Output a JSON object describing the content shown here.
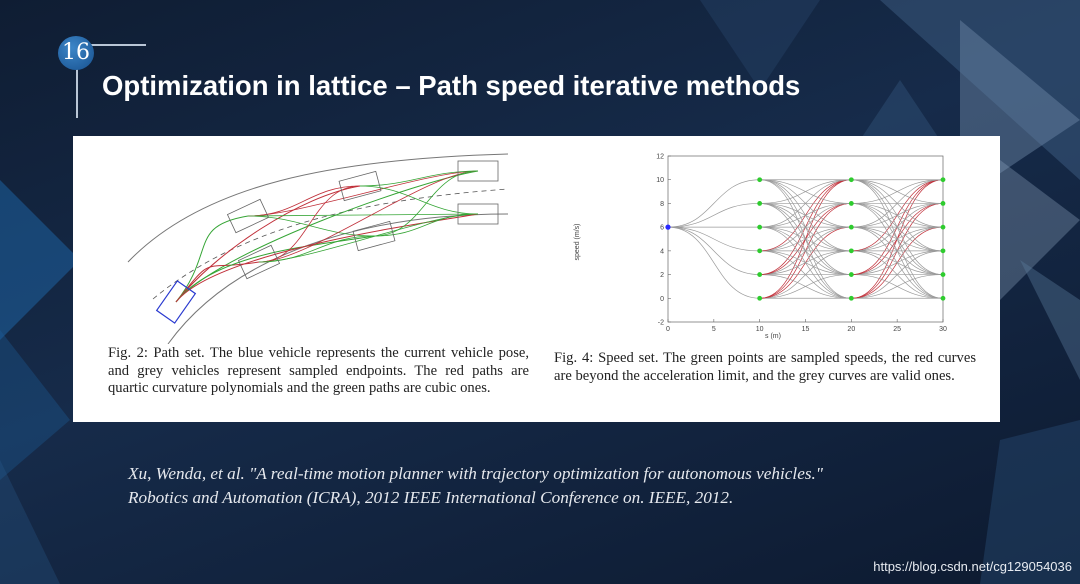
{
  "slide": {
    "number": "16",
    "title": "Optimization in lattice – Path speed iterative methods"
  },
  "figure_left": {
    "caption": "Fig. 2: Path set. The blue vehicle represents the current vehicle pose, and grey vehicles represent sampled endpoints. The red paths are quartic curvature polynomials and the green paths are cubic ones."
  },
  "figure_right": {
    "caption": "Fig. 4: Speed set. The green points are sampled speeds, the red curves are beyond the acceleration limit, and the grey curves are valid ones."
  },
  "chart_data": {
    "type": "line",
    "title": "",
    "xlabel": "s (m)",
    "ylabel": "speed (m/s)",
    "xlim": [
      0,
      30
    ],
    "ylim": [
      -2,
      12
    ],
    "x_ticks": [
      "0",
      "5",
      "10",
      "15",
      "20",
      "25",
      "30"
    ],
    "y_ticks": [
      "-2",
      "0",
      "2",
      "4",
      "6",
      "8",
      "10",
      "12"
    ],
    "start_point": {
      "s": 0,
      "v": 6
    },
    "sample_stations": [
      10,
      20,
      30
    ],
    "sample_speeds": [
      0,
      2,
      4,
      6,
      8,
      10
    ],
    "colors": {
      "valid": "#9a9a9a",
      "invalid": "#c0303a",
      "sample": "#2ecc2e",
      "start": "#2a2aff"
    }
  },
  "citation": {
    "line1": "Xu, Wenda, et al. \"A real-time motion planner with trajectory optimization for autonomous vehicles.\"",
    "line2": "Robotics and Automation (ICRA), 2012 IEEE International Conference on. IEEE, 2012."
  },
  "watermark": "https://blog.csdn.net/cg129054036"
}
